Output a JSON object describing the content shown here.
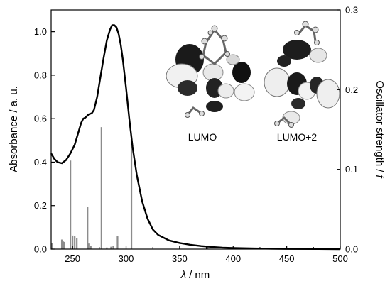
{
  "chart_data": {
    "type": "line",
    "xlabel_symbol": "λ",
    "xlabel_unit": "/ nm",
    "ylabel_left": "Absorbance / a. u.",
    "ylabel_right_text": "Oscillator strength /",
    "ylabel_right_symbol": "f",
    "xlim": [
      230,
      500
    ],
    "ylim_left": [
      0,
      1.1
    ],
    "ylim_right": [
      0,
      0.3
    ],
    "x_ticks": [
      250,
      300,
      350,
      400,
      450,
      500
    ],
    "y_ticks_left": [
      "0.0",
      "0.2",
      "0.4",
      "0.6",
      "0.8",
      "1.0"
    ],
    "y_ticks_right": [
      "0.0",
      "0.1",
      "0.2",
      "0.3"
    ],
    "absorbance_series": {
      "x": [
        230,
        233,
        236,
        240,
        244,
        248,
        252,
        255,
        258,
        260,
        262,
        265,
        268,
        270,
        273,
        276,
        279,
        282,
        285,
        287,
        289,
        291,
        293,
        295,
        297,
        300,
        303,
        306,
        310,
        315,
        320,
        325,
        330,
        340,
        350,
        360,
        370,
        380,
        390,
        400,
        420,
        450,
        480,
        500
      ],
      "y": [
        0.44,
        0.415,
        0.4,
        0.395,
        0.41,
        0.44,
        0.48,
        0.53,
        0.58,
        0.6,
        0.605,
        0.62,
        0.625,
        0.64,
        0.7,
        0.79,
        0.88,
        0.96,
        1.01,
        1.03,
        1.03,
        1.02,
        0.99,
        0.94,
        0.87,
        0.74,
        0.6,
        0.47,
        0.34,
        0.22,
        0.14,
        0.09,
        0.065,
        0.04,
        0.028,
        0.02,
        0.014,
        0.01,
        0.007,
        0.005,
        0.003,
        0.001,
        0.0005,
        0
      ]
    },
    "oscillator_bars": [
      {
        "x": 231,
        "f": 0.008
      },
      {
        "x": 240,
        "f": 0.012
      },
      {
        "x": 241,
        "f": 0.01
      },
      {
        "x": 242,
        "f": 0.009
      },
      {
        "x": 248,
        "f": 0.111
      },
      {
        "x": 250,
        "f": 0.017
      },
      {
        "x": 252,
        "f": 0.016
      },
      {
        "x": 254,
        "f": 0.014
      },
      {
        "x": 264,
        "f": 0.053
      },
      {
        "x": 265,
        "f": 0.007
      },
      {
        "x": 267,
        "f": 0.004
      },
      {
        "x": 277,
        "f": 0.153
      },
      {
        "x": 282,
        "f": 0.002
      },
      {
        "x": 286,
        "f": 0.003
      },
      {
        "x": 288,
        "f": 0.004
      },
      {
        "x": 292,
        "f": 0.016
      },
      {
        "x": 305,
        "f": 0.138
      },
      {
        "x": 376,
        "f": 0.003
      }
    ],
    "insets": [
      {
        "label": "LUMO"
      },
      {
        "label": "LUMO+2"
      }
    ],
    "colors": {
      "curve": "#000000",
      "bars": "#8c8c8c",
      "axes": "#000000"
    }
  }
}
